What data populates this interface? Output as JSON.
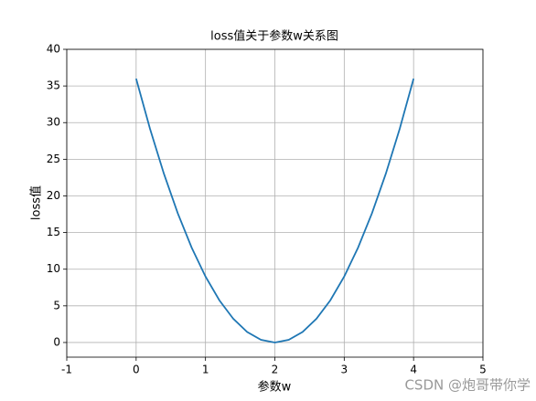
{
  "chart_data": {
    "type": "line",
    "title": "loss值关于参数w关系图",
    "xlabel": "参数w",
    "ylabel": "loss值",
    "x": [
      0,
      0.2,
      0.4,
      0.6,
      0.8,
      1,
      1.2,
      1.4,
      1.6,
      1.8,
      2,
      2.2,
      2.4,
      2.6,
      2.8,
      3,
      3.2,
      3.4,
      3.6,
      3.8,
      4
    ],
    "series": [
      {
        "color": "#1f77b4",
        "values": [
          36,
          29.16,
          23.04,
          17.64,
          12.96,
          9,
          5.76,
          3.24,
          1.44,
          0.36,
          0,
          0.36,
          1.44,
          3.24,
          5.76,
          9,
          12.96,
          17.64,
          23.04,
          29.16,
          36
        ]
      }
    ],
    "xlim": [
      -1,
      5
    ],
    "xticks": [
      -1,
      0,
      1,
      2,
      3,
      4,
      5
    ],
    "ylim": [
      -2,
      40
    ],
    "yticks": [
      0,
      5,
      10,
      15,
      20,
      25,
      30,
      35,
      40
    ],
    "grid": true,
    "watermark": "CSDN @炮哥带你学"
  }
}
